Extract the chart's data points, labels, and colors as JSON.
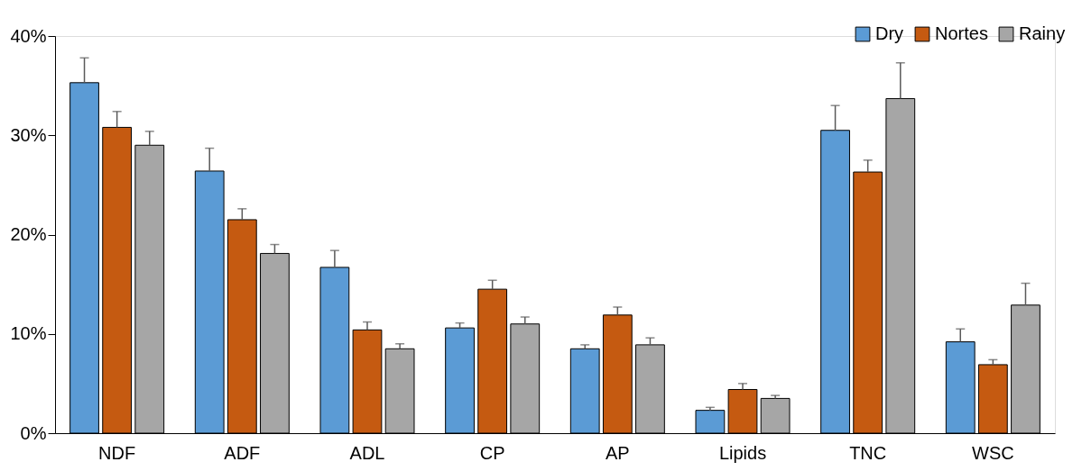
{
  "chart_data": {
    "type": "bar",
    "categories": [
      "NDF",
      "ADF",
      "ADL",
      "CP",
      "AP",
      "Lipids",
      "TNC",
      "WSC"
    ],
    "series": [
      {
        "name": "Dry",
        "color": "#5b9bd5",
        "values": [
          35.3,
          26.4,
          16.7,
          10.6,
          8.5,
          2.3,
          30.5,
          9.2
        ],
        "errors": [
          [
            35.3,
            37.8
          ],
          [
            26.4,
            28.7
          ],
          [
            16.7,
            18.4
          ],
          [
            10.6,
            11.1
          ],
          [
            8.5,
            8.9
          ],
          [
            2.3,
            2.6
          ],
          [
            30.5,
            33.0
          ],
          [
            9.2,
            10.5
          ]
        ]
      },
      {
        "name": "Nortes",
        "color": "#c55a11",
        "values": [
          30.8,
          21.5,
          10.4,
          14.5,
          11.9,
          4.4,
          26.3,
          6.9
        ],
        "errors": [
          [
            30.8,
            32.4
          ],
          [
            21.5,
            22.6
          ],
          [
            10.4,
            11.2
          ],
          [
            14.5,
            15.4
          ],
          [
            11.9,
            12.7
          ],
          [
            4.4,
            5.0
          ],
          [
            26.3,
            27.5
          ],
          [
            6.9,
            7.4
          ]
        ]
      },
      {
        "name": "Rainy",
        "color": "#a6a6a6",
        "values": [
          29.0,
          18.1,
          8.5,
          11.0,
          8.9,
          3.5,
          33.7,
          12.9
        ],
        "errors": [
          [
            29.0,
            30.4
          ],
          [
            18.1,
            19.0
          ],
          [
            8.5,
            9.0
          ],
          [
            11.0,
            11.7
          ],
          [
            8.9,
            9.6
          ],
          [
            3.5,
            3.8
          ],
          [
            33.7,
            37.3
          ],
          [
            12.9,
            15.1
          ]
        ]
      }
    ],
    "ylim": [
      0,
      40
    ],
    "yticks": [
      {
        "value": 0,
        "label": "0%"
      },
      {
        "value": 10,
        "label": "10%"
      },
      {
        "value": 20,
        "label": "20%"
      },
      {
        "value": 30,
        "label": "30%"
      },
      {
        "value": 40,
        "label": "40%"
      }
    ],
    "grid": false,
    "legend": "top right"
  }
}
